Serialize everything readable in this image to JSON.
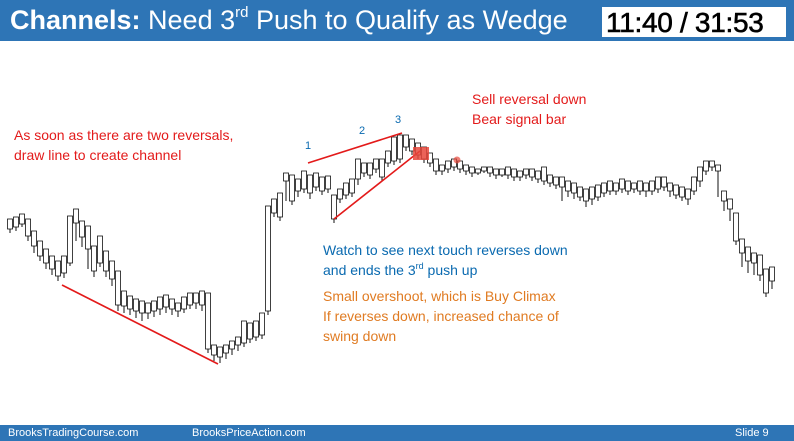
{
  "header": {
    "title_bold": "Channels:",
    "title_pre": " Need 3",
    "title_sup": "rd",
    "title_post": " Push to Qualify as Wedge",
    "timer": "11:40 / 31:53",
    "bg_color": "#2e75b6"
  },
  "annotations": {
    "sell_line1": "Sell reversal down",
    "sell_line2": "Bear signal bar",
    "reversals_line1": "As soon as there are two reversals,",
    "reversals_line2": "draw line to create channel",
    "watch_line1": "Watch to see next touch reverses down",
    "watch_line2_pre": "and ends the 3",
    "watch_line2_sup": "rd",
    "watch_line2_post": " push up",
    "climax_line1": "Small overshoot, which is Buy Climax",
    "climax_line2": "If reverses down, increased chance of",
    "climax_line3": "swing down",
    "push_labels": [
      "1",
      "2",
      "3"
    ]
  },
  "footer": {
    "left": "BrooksTradingCourse.com",
    "mid": "BrooksPriceAction.com",
    "right": "Slide  9"
  },
  "colors": {
    "annotation_red": "#e31a1a",
    "annotation_blue": "#0a6ab0",
    "annotation_orange": "#e07b22",
    "trendline": "#e31a1a",
    "signal_highlight": "#e8483c"
  }
}
